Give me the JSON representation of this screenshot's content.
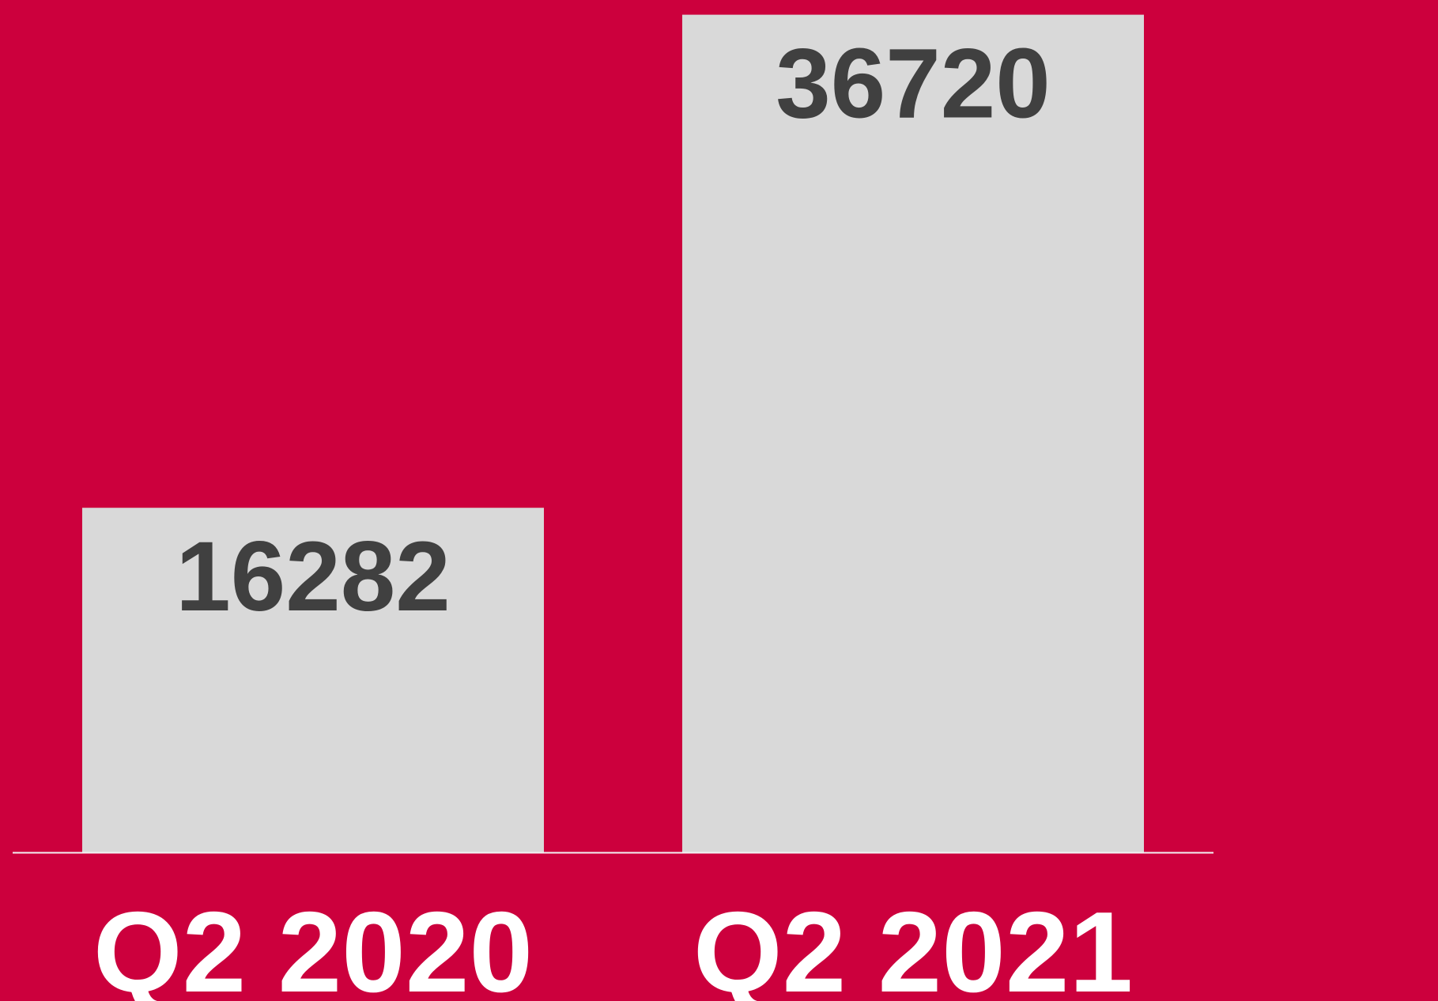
{
  "chart_data": {
    "type": "bar",
    "categories": [
      "Q2 2020",
      "Q2 2021"
    ],
    "values": [
      16282,
      36720
    ],
    "color": "#d9d9d9",
    "background": "#cc003d",
    "ylim": [
      2000,
      36720
    ]
  }
}
